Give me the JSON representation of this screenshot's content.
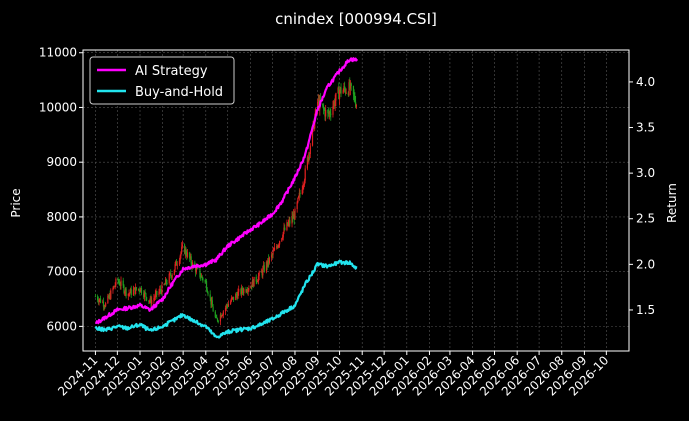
{
  "chart_data": {
    "type": "line",
    "title": "cnindex [000994.CSI]",
    "ylabel_left": "Price",
    "ylabel_right": "Return",
    "xlabel": "",
    "ylim_left": [
      5550,
      11050
    ],
    "ylim_right": [
      1.05,
      4.35
    ],
    "grid": true,
    "legend_position": "top-left",
    "colors": {
      "background": "#000000",
      "ai_strategy": "#ff00ff",
      "buy_and_hold": "#22e4ee",
      "candle_up": "#e02020",
      "candle_down": "#1e9e1e",
      "grid": "#555555",
      "text": "#ffffff"
    },
    "x_ticks": [
      "2024-11",
      "2024-12",
      "2025-01",
      "2025-02",
      "2025-03",
      "2025-04",
      "2025-05",
      "2025-06",
      "2025-07",
      "2025-08",
      "2025-09",
      "2025-10",
      "2025-11",
      "2025-12",
      "2026-01",
      "2026-02",
      "2026-03",
      "2026-04",
      "2026-05",
      "2026-06",
      "2026-07",
      "2026-08",
      "2026-09",
      "2026-10"
    ],
    "y_ticks_left": [
      6000,
      7000,
      8000,
      9000,
      10000,
      11000
    ],
    "y_ticks_right": [
      1.5,
      2.0,
      2.5,
      3.0,
      3.5,
      4.0
    ],
    "candles": {
      "name": "",
      "x": [
        "2024-11-01",
        "2024-11-15",
        "2024-12-01",
        "2024-12-15",
        "2025-01-01",
        "2025-01-15",
        "2025-02-01",
        "2025-02-15",
        "2025-03-01",
        "2025-03-15",
        "2025-04-01",
        "2025-04-15",
        "2025-05-01",
        "2025-05-15",
        "2025-06-01",
        "2025-06-15",
        "2025-07-01",
        "2025-07-15",
        "2025-08-01",
        "2025-08-15",
        "2025-09-01",
        "2025-09-15",
        "2025-10-01",
        "2025-10-15",
        "2025-10-25"
      ],
      "close": [
        6550,
        6400,
        6850,
        6600,
        6700,
        6450,
        6700,
        7000,
        7450,
        7100,
        6800,
        6100,
        6400,
        6600,
        6750,
        6950,
        7300,
        7700,
        8050,
        8800,
        10100,
        9850,
        10300,
        10350,
        10050
      ]
    },
    "series": [
      {
        "name": "AI Strategy",
        "axis": "right",
        "x": [
          "2024-11-01",
          "2024-11-15",
          "2024-12-01",
          "2024-12-15",
          "2025-01-01",
          "2025-01-15",
          "2025-02-01",
          "2025-02-15",
          "2025-03-01",
          "2025-03-15",
          "2025-04-01",
          "2025-04-15",
          "2025-05-01",
          "2025-05-15",
          "2025-06-01",
          "2025-06-15",
          "2025-07-01",
          "2025-07-15",
          "2025-08-01",
          "2025-08-15",
          "2025-09-01",
          "2025-09-15",
          "2025-10-01",
          "2025-10-15",
          "2025-10-25"
        ],
        "values": [
          1.35,
          1.42,
          1.5,
          1.52,
          1.55,
          1.5,
          1.62,
          1.8,
          1.95,
          1.98,
          2.0,
          2.05,
          2.2,
          2.28,
          2.38,
          2.45,
          2.55,
          2.7,
          2.95,
          3.2,
          3.7,
          3.95,
          4.12,
          4.25,
          4.24
        ]
      },
      {
        "name": "Buy-and-Hold",
        "axis": "right",
        "x": [
          "2024-11-01",
          "2024-11-15",
          "2024-12-01",
          "2024-12-15",
          "2025-01-01",
          "2025-01-15",
          "2025-02-01",
          "2025-02-15",
          "2025-03-01",
          "2025-03-15",
          "2025-04-01",
          "2025-04-15",
          "2025-05-01",
          "2025-05-15",
          "2025-06-01",
          "2025-06-15",
          "2025-07-01",
          "2025-07-15",
          "2025-08-01",
          "2025-08-15",
          "2025-09-01",
          "2025-09-15",
          "2025-10-01",
          "2025-10-15",
          "2025-10-25"
        ],
        "values": [
          1.3,
          1.28,
          1.32,
          1.3,
          1.34,
          1.27,
          1.32,
          1.38,
          1.45,
          1.38,
          1.32,
          1.2,
          1.26,
          1.28,
          1.3,
          1.34,
          1.4,
          1.47,
          1.55,
          1.78,
          2.0,
          1.98,
          2.02,
          2.02,
          1.95
        ]
      }
    ]
  }
}
